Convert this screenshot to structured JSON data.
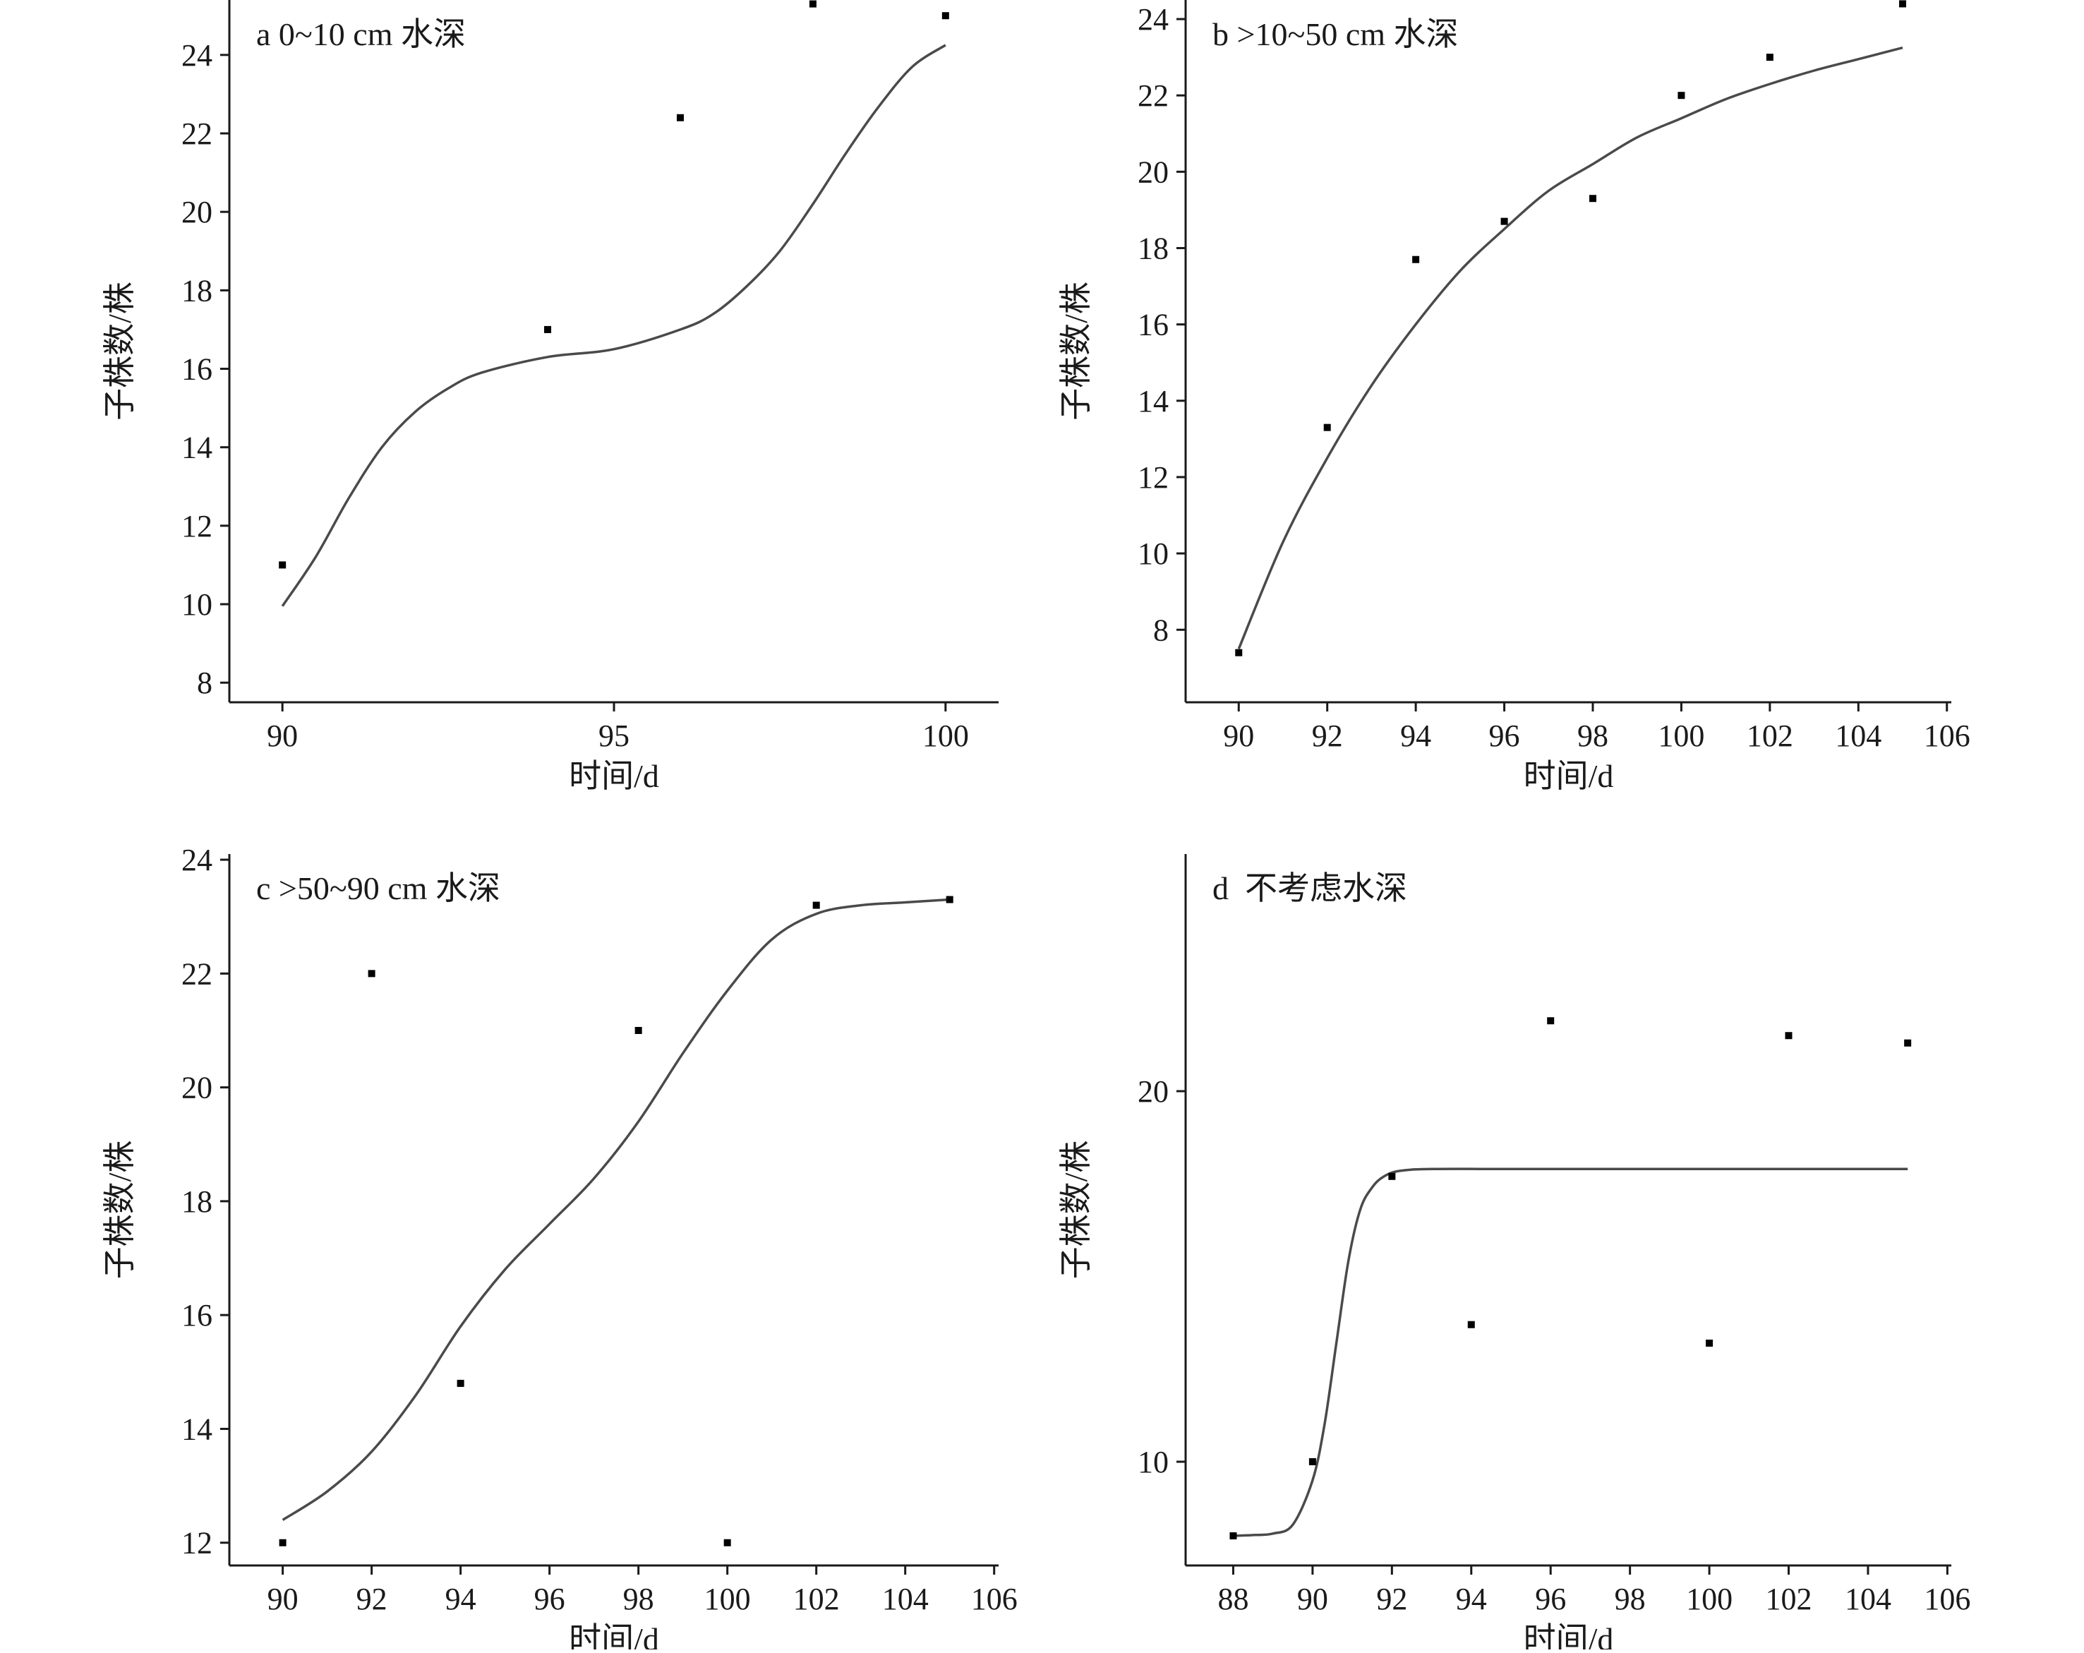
{
  "chart_data": [
    {
      "type": "scatter",
      "panel": "a",
      "title": "a 0~10 cm 水深",
      "xlabel": "时间/d",
      "ylabel": "子株数/株",
      "xlim": [
        89.2,
        100.8
      ],
      "ylim": [
        7.5,
        25.4
      ],
      "xticks": [
        90,
        95,
        100
      ],
      "yticks": [
        8,
        10,
        12,
        14,
        16,
        18,
        20,
        22,
        24
      ],
      "points": [
        {
          "x": 90,
          "y": 11.0
        },
        {
          "x": 94,
          "y": 17.0
        },
        {
          "x": 96,
          "y": 22.4
        },
        {
          "x": 98,
          "y": 25.3
        },
        {
          "x": 100,
          "y": 25.0
        }
      ],
      "fit_curve": [
        {
          "x": 90,
          "y": 9.95
        },
        {
          "x": 90.5,
          "y": 11.2
        },
        {
          "x": 91,
          "y": 12.7
        },
        {
          "x": 91.5,
          "y": 14.0
        },
        {
          "x": 92,
          "y": 14.9
        },
        {
          "x": 92.5,
          "y": 15.5
        },
        {
          "x": 93,
          "y": 15.9
        },
        {
          "x": 94,
          "y": 16.3
        },
        {
          "x": 95,
          "y": 16.5
        },
        {
          "x": 96,
          "y": 17.0
        },
        {
          "x": 96.5,
          "y": 17.4
        },
        {
          "x": 97,
          "y": 18.1
        },
        {
          "x": 97.5,
          "y": 19.0
        },
        {
          "x": 98,
          "y": 20.2
        },
        {
          "x": 98.5,
          "y": 21.5
        },
        {
          "x": 99,
          "y": 22.7
        },
        {
          "x": 99.5,
          "y": 23.7
        },
        {
          "x": 100,
          "y": 24.25
        }
      ]
    },
    {
      "type": "scatter",
      "panel": "b",
      "title": "b >10~50 cm 水深",
      "xlabel": "时间/d",
      "ylabel": "子株数/株",
      "xlim": [
        88.8,
        106.1
      ],
      "ylim": [
        6.1,
        24.5
      ],
      "xticks": [
        90,
        92,
        94,
        96,
        98,
        100,
        102,
        104,
        106
      ],
      "yticks": [
        8,
        10,
        12,
        14,
        16,
        18,
        20,
        22,
        24
      ],
      "points": [
        {
          "x": 90,
          "y": 7.4
        },
        {
          "x": 92,
          "y": 13.3
        },
        {
          "x": 94,
          "y": 17.7
        },
        {
          "x": 96,
          "y": 18.7
        },
        {
          "x": 98,
          "y": 19.3
        },
        {
          "x": 100,
          "y": 22.0
        },
        {
          "x": 102,
          "y": 23.0
        },
        {
          "x": 105,
          "y": 24.4
        }
      ],
      "fit_curve": [
        {
          "x": 90,
          "y": 7.5
        },
        {
          "x": 91,
          "y": 10.3
        },
        {
          "x": 92,
          "y": 12.5
        },
        {
          "x": 93,
          "y": 14.4
        },
        {
          "x": 94,
          "y": 16.0
        },
        {
          "x": 95,
          "y": 17.4
        },
        {
          "x": 96,
          "y": 18.5
        },
        {
          "x": 97,
          "y": 19.5
        },
        {
          "x": 98,
          "y": 20.2
        },
        {
          "x": 99,
          "y": 20.9
        },
        {
          "x": 100,
          "y": 21.4
        },
        {
          "x": 101,
          "y": 21.9
        },
        {
          "x": 102,
          "y": 22.3
        },
        {
          "x": 103,
          "y": 22.65
        },
        {
          "x": 104,
          "y": 22.95
        },
        {
          "x": 105,
          "y": 23.25
        }
      ]
    },
    {
      "type": "scatter",
      "panel": "c",
      "title": "c >50~90 cm 水深",
      "xlabel": "时间/d",
      "ylabel": "子株数/株",
      "xlim": [
        88.8,
        106.1
      ],
      "ylim": [
        11.6,
        24.1
      ],
      "xticks": [
        90,
        92,
        94,
        96,
        98,
        100,
        102,
        104,
        106
      ],
      "yticks": [
        12,
        14,
        16,
        18,
        20,
        22,
        24
      ],
      "points": [
        {
          "x": 90,
          "y": 12.0
        },
        {
          "x": 92,
          "y": 22.0
        },
        {
          "x": 94,
          "y": 14.8
        },
        {
          "x": 98,
          "y": 21.0
        },
        {
          "x": 100,
          "y": 12.0
        },
        {
          "x": 102,
          "y": 23.2
        },
        {
          "x": 105,
          "y": 23.3
        }
      ],
      "fit_curve": [
        {
          "x": 90,
          "y": 12.4
        },
        {
          "x": 91,
          "y": 12.9
        },
        {
          "x": 92,
          "y": 13.6
        },
        {
          "x": 93,
          "y": 14.6
        },
        {
          "x": 94,
          "y": 15.8
        },
        {
          "x": 95,
          "y": 16.8
        },
        {
          "x": 96,
          "y": 17.6
        },
        {
          "x": 97,
          "y": 18.4
        },
        {
          "x": 98,
          "y": 19.4
        },
        {
          "x": 99,
          "y": 20.6
        },
        {
          "x": 100,
          "y": 21.7
        },
        {
          "x": 101,
          "y": 22.6
        },
        {
          "x": 102,
          "y": 23.05
        },
        {
          "x": 103,
          "y": 23.2
        },
        {
          "x": 104,
          "y": 23.25
        },
        {
          "x": 105,
          "y": 23.3
        }
      ]
    },
    {
      "type": "scatter",
      "panel": "d",
      "title": "d  不考虑水深",
      "xlabel": "时间/d",
      "ylabel": "子株数/株",
      "xlim": [
        86.8,
        106.1
      ],
      "ylim": [
        7.2,
        26.4
      ],
      "xticks": [
        88,
        90,
        92,
        94,
        96,
        98,
        100,
        102,
        104,
        106
      ],
      "yticks": [
        10,
        20
      ],
      "points": [
        {
          "x": 88,
          "y": 8.0
        },
        {
          "x": 90,
          "y": 10.0
        },
        {
          "x": 92,
          "y": 17.7
        },
        {
          "x": 94,
          "y": 13.7
        },
        {
          "x": 96,
          "y": 21.9
        },
        {
          "x": 100,
          "y": 13.2
        },
        {
          "x": 102,
          "y": 21.5
        },
        {
          "x": 105,
          "y": 21.3
        }
      ],
      "fit_curve": [
        {
          "x": 88,
          "y": 8.0
        },
        {
          "x": 88.5,
          "y": 8.02
        },
        {
          "x": 89,
          "y": 8.06
        },
        {
          "x": 89.5,
          "y": 8.3
        },
        {
          "x": 90,
          "y": 9.5
        },
        {
          "x": 90.3,
          "y": 11.0
        },
        {
          "x": 90.6,
          "y": 13.2
        },
        {
          "x": 90.9,
          "y": 15.4
        },
        {
          "x": 91.2,
          "y": 16.8
        },
        {
          "x": 91.5,
          "y": 17.4
        },
        {
          "x": 91.8,
          "y": 17.7
        },
        {
          "x": 92.2,
          "y": 17.85
        },
        {
          "x": 93,
          "y": 17.9
        },
        {
          "x": 95,
          "y": 17.9
        },
        {
          "x": 100,
          "y": 17.9
        },
        {
          "x": 105,
          "y": 17.9
        }
      ]
    }
  ]
}
